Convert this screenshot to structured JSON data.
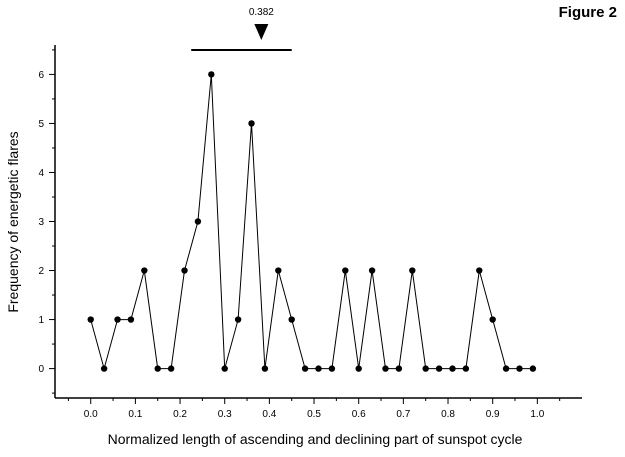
{
  "figure_label": "Figure 2",
  "chart_data": {
    "type": "line",
    "title": "",
    "xlabel": "Normalized length of ascending and declining part of sunspot cycle",
    "ylabel": "Frequency of energetic flares",
    "xlim": [
      -0.08,
      1.1
    ],
    "ylim": [
      -0.6,
      6.6
    ],
    "x_ticks": [
      0.0,
      0.1,
      0.2,
      0.3,
      0.4,
      0.5,
      0.6,
      0.7,
      0.8,
      0.9,
      1.0
    ],
    "x_tick_labels": [
      "0.0",
      "0.1",
      "0.2",
      "0.3",
      "0.4",
      "0.5",
      "0.6",
      "0.7",
      "0.8",
      "0.9",
      "1.0"
    ],
    "y_ticks": [
      0,
      1,
      2,
      3,
      4,
      5,
      6
    ],
    "y_tick_labels": [
      "0",
      "1",
      "2",
      "3",
      "4",
      "5",
      "6"
    ],
    "grid": false,
    "series": [
      {
        "x": [
          0.0,
          0.03,
          0.06,
          0.09,
          0.12,
          0.15,
          0.18,
          0.21,
          0.24,
          0.27,
          0.3,
          0.33,
          0.36,
          0.39,
          0.42,
          0.45,
          0.48,
          0.51,
          0.54,
          0.57,
          0.6,
          0.63,
          0.66,
          0.69,
          0.72,
          0.75,
          0.78,
          0.81,
          0.84,
          0.87,
          0.9,
          0.93,
          0.96,
          0.99
        ],
        "values": [
          1,
          0,
          1,
          1,
          2,
          0,
          0,
          2,
          3,
          6,
          0,
          1,
          5,
          0,
          2,
          1,
          0,
          0,
          0,
          2,
          0,
          2,
          0,
          0,
          2,
          0,
          0,
          0,
          0,
          2,
          1,
          0,
          0,
          0
        ]
      }
    ],
    "annotation": {
      "label": "0.382",
      "marker_x": 0.382,
      "range_x": [
        0.225,
        0.45
      ],
      "marker": "down-triangle"
    }
  }
}
